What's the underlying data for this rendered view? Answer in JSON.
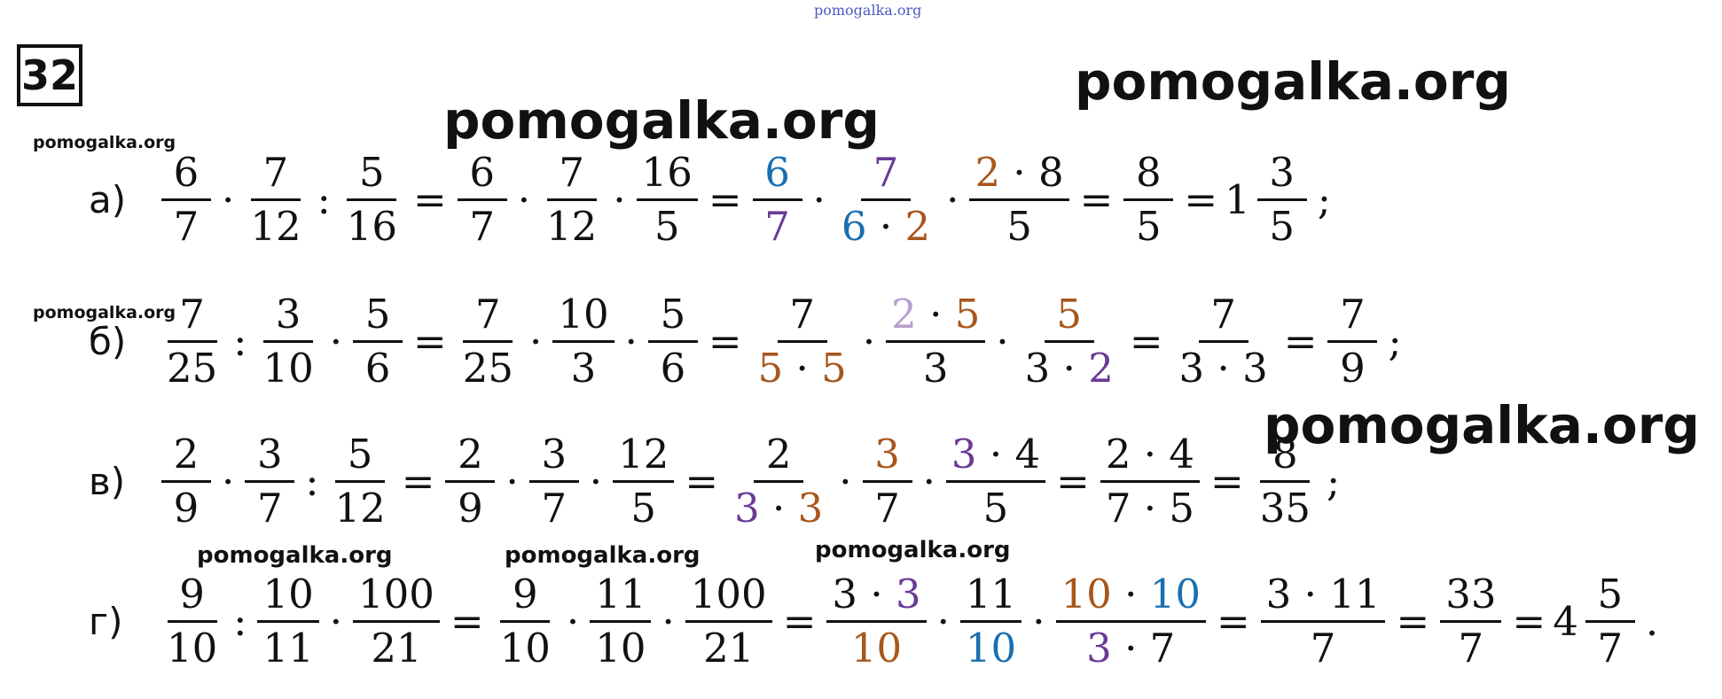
{
  "header": {
    "number": "32",
    "site": "pomogalka.org"
  },
  "watermarks": [
    "pomogalka.org",
    "pomogalka.org",
    "pomogalka.org",
    "pomogalka.org",
    "pomogalka.org",
    "pomogalka.org",
    "pomogalka.org",
    "pomogalka.org"
  ],
  "rows": [
    {
      "label": "а)",
      "items": [
        {
          "num": [
            {
              "text": "6"
            }
          ],
          "den": [
            {
              "text": "7"
            }
          ]
        },
        {
          "op": "·"
        },
        {
          "num": [
            {
              "text": "7"
            }
          ],
          "den": [
            {
              "text": "12"
            }
          ]
        },
        {
          "op": ":"
        },
        {
          "num": [
            {
              "text": "5"
            }
          ],
          "den": [
            {
              "text": "16"
            }
          ]
        },
        {
          "op": "="
        },
        {
          "num": [
            {
              "text": "6"
            }
          ],
          "den": [
            {
              "text": "7"
            }
          ]
        },
        {
          "op": "·"
        },
        {
          "num": [
            {
              "text": "7"
            }
          ],
          "den": [
            {
              "text": "12"
            }
          ]
        },
        {
          "op": "·"
        },
        {
          "num": [
            {
              "text": "16"
            }
          ],
          "den": [
            {
              "text": "5"
            }
          ]
        },
        {
          "op": "="
        },
        {
          "num": [
            {
              "text": "6",
              "color": "#1a6fb0"
            }
          ],
          "den": [
            {
              "text": "7",
              "color": "#6a3a96"
            }
          ]
        },
        {
          "op": "·"
        },
        {
          "num": [
            {
              "text": "7",
              "color": "#6a3a96"
            }
          ],
          "den": [
            {
              "text": "6",
              "color": "#1a6fb0"
            },
            {
              "text": " · "
            },
            {
              "text": "2",
              "color": "#a8561c"
            }
          ]
        },
        {
          "op": "·"
        },
        {
          "num": [
            {
              "text": "2",
              "color": "#a8561c"
            },
            {
              "text": " · 8"
            }
          ],
          "den": [
            {
              "text": "5"
            }
          ]
        },
        {
          "op": "="
        },
        {
          "num": [
            {
              "text": "8"
            }
          ],
          "den": [
            {
              "text": "5"
            }
          ]
        },
        {
          "op": "="
        },
        {
          "whole": "1",
          "num": [
            {
              "text": "3"
            }
          ],
          "den": [
            {
              "text": "5"
            }
          ]
        },
        {
          "op": ";"
        }
      ]
    },
    {
      "label": "б)",
      "items": [
        {
          "num": [
            {
              "text": "7"
            }
          ],
          "den": [
            {
              "text": "25"
            }
          ]
        },
        {
          "op": ":"
        },
        {
          "num": [
            {
              "text": "3"
            }
          ],
          "den": [
            {
              "text": "10"
            }
          ]
        },
        {
          "op": "·"
        },
        {
          "num": [
            {
              "text": "5"
            }
          ],
          "den": [
            {
              "text": "6"
            }
          ]
        },
        {
          "op": "="
        },
        {
          "num": [
            {
              "text": "7"
            }
          ],
          "den": [
            {
              "text": "25"
            }
          ]
        },
        {
          "op": "·"
        },
        {
          "num": [
            {
              "text": "10"
            }
          ],
          "den": [
            {
              "text": "3"
            }
          ]
        },
        {
          "op": "·"
        },
        {
          "num": [
            {
              "text": "5"
            }
          ],
          "den": [
            {
              "text": "6"
            }
          ]
        },
        {
          "op": "="
        },
        {
          "num": [
            {
              "text": "7"
            }
          ],
          "den": [
            {
              "text": "5",
              "color": "#a8561c"
            },
            {
              "text": " · "
            },
            {
              "text": "5",
              "color": "#a8561c"
            }
          ]
        },
        {
          "op": "·"
        },
        {
          "num": [
            {
              "text": "2",
              "color": "#b79fd0"
            },
            {
              "text": " · "
            },
            {
              "text": "5",
              "color": "#a8561c"
            }
          ],
          "den": [
            {
              "text": "3"
            }
          ]
        },
        {
          "op": "·"
        },
        {
          "num": [
            {
              "text": "5",
              "color": "#a8561c"
            }
          ],
          "den": [
            {
              "text": "3 · "
            },
            {
              "text": "2",
              "color": "#6a3a96"
            }
          ]
        },
        {
          "op": "="
        },
        {
          "num": [
            {
              "text": "7"
            }
          ],
          "den": [
            {
              "text": "3 · 3"
            }
          ]
        },
        {
          "op": "="
        },
        {
          "num": [
            {
              "text": "7"
            }
          ],
          "den": [
            {
              "text": "9"
            }
          ]
        },
        {
          "op": ";"
        }
      ]
    },
    {
      "label": "в)",
      "items": [
        {
          "num": [
            {
              "text": "2"
            }
          ],
          "den": [
            {
              "text": "9"
            }
          ]
        },
        {
          "op": "·"
        },
        {
          "num": [
            {
              "text": "3"
            }
          ],
          "den": [
            {
              "text": "7"
            }
          ]
        },
        {
          "op": ":"
        },
        {
          "num": [
            {
              "text": "5"
            }
          ],
          "den": [
            {
              "text": "12"
            }
          ]
        },
        {
          "op": "="
        },
        {
          "num": [
            {
              "text": "2"
            }
          ],
          "den": [
            {
              "text": "9"
            }
          ]
        },
        {
          "op": "·"
        },
        {
          "num": [
            {
              "text": "3"
            }
          ],
          "den": [
            {
              "text": "7"
            }
          ]
        },
        {
          "op": "·"
        },
        {
          "num": [
            {
              "text": "12"
            }
          ],
          "den": [
            {
              "text": "5"
            }
          ]
        },
        {
          "op": "="
        },
        {
          "num": [
            {
              "text": "2"
            }
          ],
          "den": [
            {
              "text": "3",
              "color": "#6a3a96"
            },
            {
              "text": " · "
            },
            {
              "text": "3",
              "color": "#a8561c"
            }
          ]
        },
        {
          "op": "·"
        },
        {
          "num": [
            {
              "text": "3",
              "color": "#a8561c"
            }
          ],
          "den": [
            {
              "text": "7"
            }
          ]
        },
        {
          "op": "·"
        },
        {
          "num": [
            {
              "text": "3",
              "color": "#6a3a96"
            },
            {
              "text": " · 4"
            }
          ],
          "den": [
            {
              "text": "5"
            }
          ]
        },
        {
          "op": "="
        },
        {
          "num": [
            {
              "text": "2 · 4"
            }
          ],
          "den": [
            {
              "text": "7 · 5"
            }
          ]
        },
        {
          "op": "="
        },
        {
          "num": [
            {
              "text": "8"
            }
          ],
          "den": [
            {
              "text": "35"
            }
          ]
        },
        {
          "op": ";"
        }
      ]
    },
    {
      "label": "г)",
      "items": [
        {
          "num": [
            {
              "text": "9"
            }
          ],
          "den": [
            {
              "text": "10"
            }
          ]
        },
        {
          "op": ":"
        },
        {
          "num": [
            {
              "text": "10"
            }
          ],
          "den": [
            {
              "text": "11"
            }
          ]
        },
        {
          "op": "·"
        },
        {
          "num": [
            {
              "text": "100"
            }
          ],
          "den": [
            {
              "text": "21"
            }
          ]
        },
        {
          "op": "="
        },
        {
          "num": [
            {
              "text": "9"
            }
          ],
          "den": [
            {
              "text": "10"
            }
          ]
        },
        {
          "op": "·"
        },
        {
          "num": [
            {
              "text": "11"
            }
          ],
          "den": [
            {
              "text": "10"
            }
          ]
        },
        {
          "op": "·"
        },
        {
          "num": [
            {
              "text": "100"
            }
          ],
          "den": [
            {
              "text": "21"
            }
          ]
        },
        {
          "op": "="
        },
        {
          "num": [
            {
              "text": "3 · "
            },
            {
              "text": "3",
              "color": "#6a3a96"
            }
          ],
          "den": [
            {
              "text": "10",
              "color": "#a8561c"
            }
          ]
        },
        {
          "op": "·"
        },
        {
          "num": [
            {
              "text": "11"
            }
          ],
          "den": [
            {
              "text": "10",
              "color": "#1a6fb0"
            }
          ]
        },
        {
          "op": "·"
        },
        {
          "num": [
            {
              "text": "10",
              "color": "#a8561c"
            },
            {
              "text": " · "
            },
            {
              "text": "10",
              "color": "#1a6fb0"
            }
          ],
          "den": [
            {
              "text": "3",
              "color": "#6a3a96"
            },
            {
              "text": " · 7"
            }
          ]
        },
        {
          "op": "="
        },
        {
          "num": [
            {
              "text": "3 · 11"
            }
          ],
          "den": [
            {
              "text": "7"
            }
          ]
        },
        {
          "op": "="
        },
        {
          "num": [
            {
              "text": "33"
            }
          ],
          "den": [
            {
              "text": "7"
            }
          ]
        },
        {
          "op": "="
        },
        {
          "whole": "4",
          "num": [
            {
              "text": "5"
            }
          ],
          "den": [
            {
              "text": "7"
            }
          ]
        },
        {
          "op": "."
        }
      ]
    }
  ]
}
